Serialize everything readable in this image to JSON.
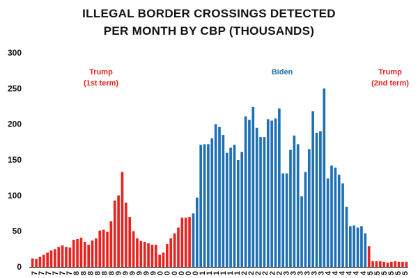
{
  "title_lines": [
    "ILLEGAL BORDER CROSSINGS DETECTED",
    "PER MONTH BY CBP (THOUSANDS)"
  ],
  "colors": {
    "trump": "#e8231f",
    "biden": "#1f6fb5",
    "axis": "#111111"
  },
  "eras": [
    {
      "id": "trump-1",
      "line1": "Trump",
      "line2": "(1st term)",
      "color": "#e8231f"
    },
    {
      "id": "biden",
      "line1": "Biden",
      "line2": "",
      "color": "#1f6fb5"
    },
    {
      "id": "trump-2",
      "line1": "Trump",
      "line2": "(2nd term)",
      "color": "#e8231f"
    }
  ],
  "chart_data": {
    "type": "bar",
    "title": "ILLEGAL BORDER CROSSINGS DETECTED PER MONTH BY CBP (THOUSANDS)",
    "xlabel": "",
    "ylabel": "",
    "ylim": [
      0,
      300
    ],
    "yticks": [
      0,
      50,
      100,
      150,
      200,
      250,
      300
    ],
    "grid": false,
    "x_tick_labels": [
      "7",
      "7",
      "7",
      "7",
      "7",
      "7",
      "8",
      "8",
      "8",
      "8",
      "8",
      "8",
      "9",
      "9",
      "9",
      "9",
      "9",
      "9",
      "0",
      "0",
      "0",
      "0",
      "0",
      "0",
      "1",
      "1",
      "1",
      "1",
      "1",
      "1",
      "2",
      "2",
      "2",
      "2",
      "2",
      "2",
      "3",
      "3",
      "3",
      "3",
      "3",
      "3",
      "4",
      "4",
      "4",
      "4",
      "4",
      "4",
      "5",
      "5",
      "5",
      "5",
      "5",
      "5"
    ],
    "series": [
      {
        "name": "Trump (1st term)",
        "color": "#e8231f",
        "values": [
          12,
          11,
          14,
          17,
          20,
          23,
          25,
          28,
          30,
          28,
          27,
          38,
          39,
          41,
          35,
          31,
          37,
          40,
          51,
          52,
          49,
          64,
          93,
          100,
          133,
          90,
          70,
          50,
          40,
          36,
          35,
          33,
          31,
          31,
          17,
          20,
          32,
          40,
          47,
          55,
          69,
          69,
          70
        ]
      },
      {
        "name": "Biden",
        "color": "#1f6fb5",
        "values": [
          75,
          97,
          171,
          172,
          172,
          180,
          200,
          196,
          185,
          160,
          167,
          171,
          150,
          161,
          211,
          206,
          224,
          195,
          182,
          182,
          207,
          205,
          208,
          222,
          131,
          131,
          164,
          184,
          172,
          99,
          133,
          165,
          218,
          188,
          190,
          250,
          124,
          142,
          139,
          129,
          117,
          84,
          57,
          58,
          55,
          57,
          47
        ]
      },
      {
        "name": "Trump (2nd term)",
        "color": "#e8231f",
        "values": [
          29,
          8,
          8,
          8,
          7,
          6,
          7,
          8,
          7,
          7,
          7
        ]
      }
    ]
  }
}
